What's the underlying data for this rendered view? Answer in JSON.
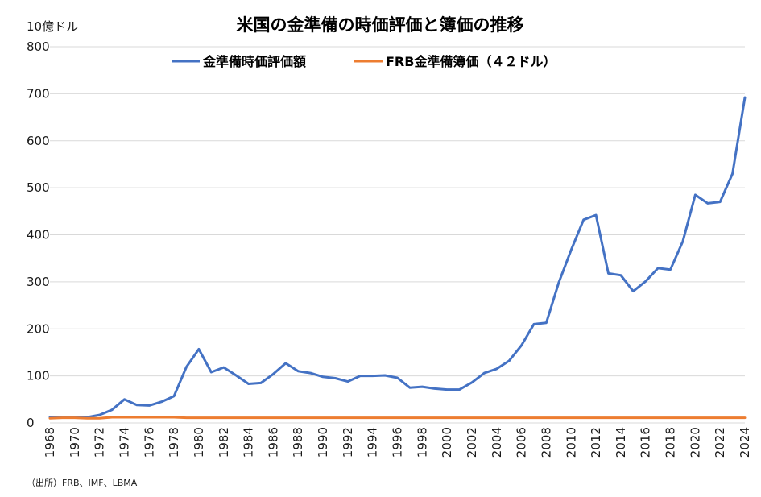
{
  "chart_data": {
    "type": "line",
    "title": "米国の金準備の時価評価と簿価の推移",
    "ylabel": "10億ドル",
    "xlabel": "",
    "ylim": [
      0,
      800
    ],
    "yticks": [
      "0",
      "100",
      "200",
      "300",
      "400",
      "500",
      "600",
      "700",
      "800"
    ],
    "x": [
      1968,
      1969,
      1970,
      1971,
      1972,
      1973,
      1974,
      1975,
      1976,
      1977,
      1978,
      1979,
      1980,
      1981,
      1982,
      1983,
      1984,
      1985,
      1986,
      1987,
      1988,
      1989,
      1990,
      1991,
      1992,
      1993,
      1994,
      1995,
      1996,
      1997,
      1998,
      1999,
      2000,
      2001,
      2002,
      2003,
      2004,
      2005,
      2006,
      2007,
      2008,
      2009,
      2010,
      2011,
      2012,
      2013,
      2014,
      2015,
      2016,
      2017,
      2018,
      2019,
      2020,
      2021,
      2022,
      2023,
      2024
    ],
    "xticks": [
      "1968",
      "1970",
      "1972",
      "1974",
      "1976",
      "1978",
      "1980",
      "1982",
      "1984",
      "1986",
      "1988",
      "1990",
      "1992",
      "1994",
      "1996",
      "1998",
      "2000",
      "2002",
      "2004",
      "2006",
      "2008",
      "2010",
      "2012",
      "2014",
      "2016",
      "2018",
      "2020",
      "2022",
      "2024"
    ],
    "grid": true,
    "legend_position": "top",
    "source": "（出所）FRB、IMF、LBMA",
    "series": [
      {
        "name": "金準備時価評価額",
        "color": "#4472C4",
        "values": [
          12,
          12,
          12,
          12,
          17,
          28,
          50,
          38,
          37,
          45,
          57,
          119,
          157,
          108,
          118,
          101,
          83,
          85,
          104,
          127,
          110,
          106,
          98,
          95,
          88,
          100,
          100,
          101,
          96,
          75,
          77,
          73,
          71,
          71,
          86,
          106,
          115,
          132,
          165,
          210,
          213,
          298,
          368,
          432,
          442,
          318,
          314,
          280,
          301,
          329,
          326,
          386,
          485,
          467,
          470,
          530,
          692
        ]
      },
      {
        "name": "FRB金準備簿価（４２ドル）",
        "color": "#ED7D31",
        "values": [
          10,
          11,
          11,
          10,
          10,
          12,
          12,
          12,
          12,
          12,
          12,
          11,
          11,
          11,
          11,
          11,
          11,
          11,
          11,
          11,
          11,
          11,
          11,
          11,
          11,
          11,
          11,
          11,
          11,
          11,
          11,
          11,
          11,
          11,
          11,
          11,
          11,
          11,
          11,
          11,
          11,
          11,
          11,
          11,
          11,
          11,
          11,
          11,
          11,
          11,
          11,
          11,
          11,
          11,
          11,
          11,
          11
        ]
      }
    ]
  }
}
